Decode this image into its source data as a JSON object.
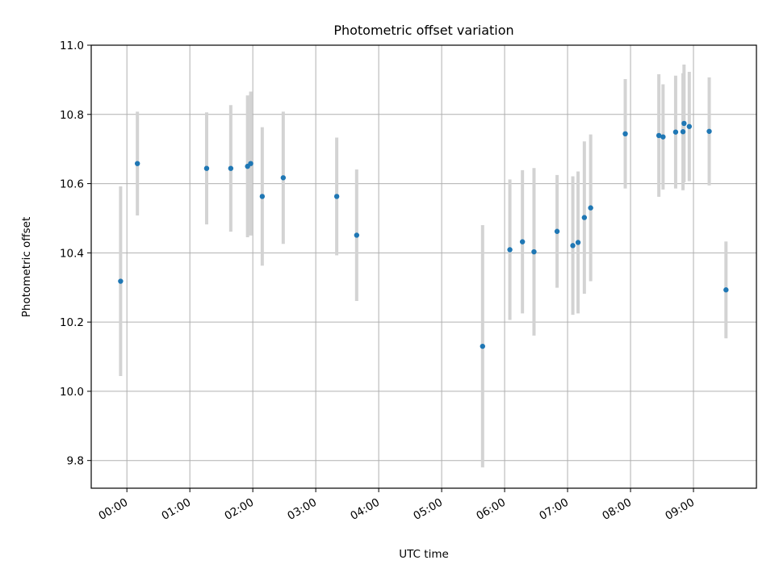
{
  "chart_data": {
    "type": "scatter",
    "title": "Photometric offset variation",
    "xlabel": "UTC time",
    "ylabel": "Photometric offset",
    "xlim": [
      "-00:34",
      "10:00"
    ],
    "ylim": [
      9.72,
      11.0
    ],
    "grid": true,
    "x_ticks": [
      "00:00",
      "01:00",
      "02:00",
      "03:00",
      "04:00",
      "05:00",
      "06:00",
      "07:00",
      "08:00",
      "09:00"
    ],
    "y_ticks": [
      9.8,
      10.0,
      10.2,
      10.4,
      10.6,
      10.8,
      11.0
    ],
    "y_tick_labels": [
      "9.8",
      "10.0",
      "10.2",
      "10.4",
      "10.6",
      "10.8",
      "11.0"
    ],
    "colors": {
      "points": "#1f77b4",
      "errorbars": "#d3d3d3",
      "grid": "#b0b0b0"
    },
    "points": [
      {
        "x": "-00:06",
        "y": 10.318,
        "err": 0.274
      },
      {
        "x": "00:10",
        "y": 10.658,
        "err": 0.15
      },
      {
        "x": "01:16",
        "y": 10.644,
        "err": 0.162
      },
      {
        "x": "01:39",
        "y": 10.644,
        "err": 0.183
      },
      {
        "x": "01:55",
        "y": 10.65,
        "err": 0.205
      },
      {
        "x": "01:58",
        "y": 10.658,
        "err": 0.208
      },
      {
        "x": "02:09",
        "y": 10.563,
        "err": 0.2
      },
      {
        "x": "02:29",
        "y": 10.617,
        "err": 0.191
      },
      {
        "x": "03:20",
        "y": 10.563,
        "err": 0.17
      },
      {
        "x": "03:39",
        "y": 10.451,
        "err": 0.19
      },
      {
        "x": "05:39",
        "y": 10.13,
        "err": 0.35
      },
      {
        "x": "06:05",
        "y": 10.409,
        "err": 0.203
      },
      {
        "x": "06:17",
        "y": 10.432,
        "err": 0.207
      },
      {
        "x": "06:28",
        "y": 10.403,
        "err": 0.242
      },
      {
        "x": "06:50",
        "y": 10.462,
        "err": 0.163
      },
      {
        "x": "07:05",
        "y": 10.421,
        "err": 0.2
      },
      {
        "x": "07:10",
        "y": 10.43,
        "err": 0.205
      },
      {
        "x": "07:16",
        "y": 10.502,
        "err": 0.22
      },
      {
        "x": "07:22",
        "y": 10.53,
        "err": 0.212
      },
      {
        "x": "07:55",
        "y": 10.744,
        "err": 0.158
      },
      {
        "x": "08:27",
        "y": 10.739,
        "err": 0.177
      },
      {
        "x": "08:31",
        "y": 10.735,
        "err": 0.152
      },
      {
        "x": "08:43",
        "y": 10.749,
        "err": 0.163
      },
      {
        "x": "08:50",
        "y": 10.75,
        "err": 0.169
      },
      {
        "x": "08:51",
        "y": 10.774,
        "err": 0.17
      },
      {
        "x": "08:56",
        "y": 10.765,
        "err": 0.158
      },
      {
        "x": "09:15",
        "y": 10.751,
        "err": 0.156
      },
      {
        "x": "09:31",
        "y": 10.293,
        "err": 0.14
      }
    ]
  }
}
